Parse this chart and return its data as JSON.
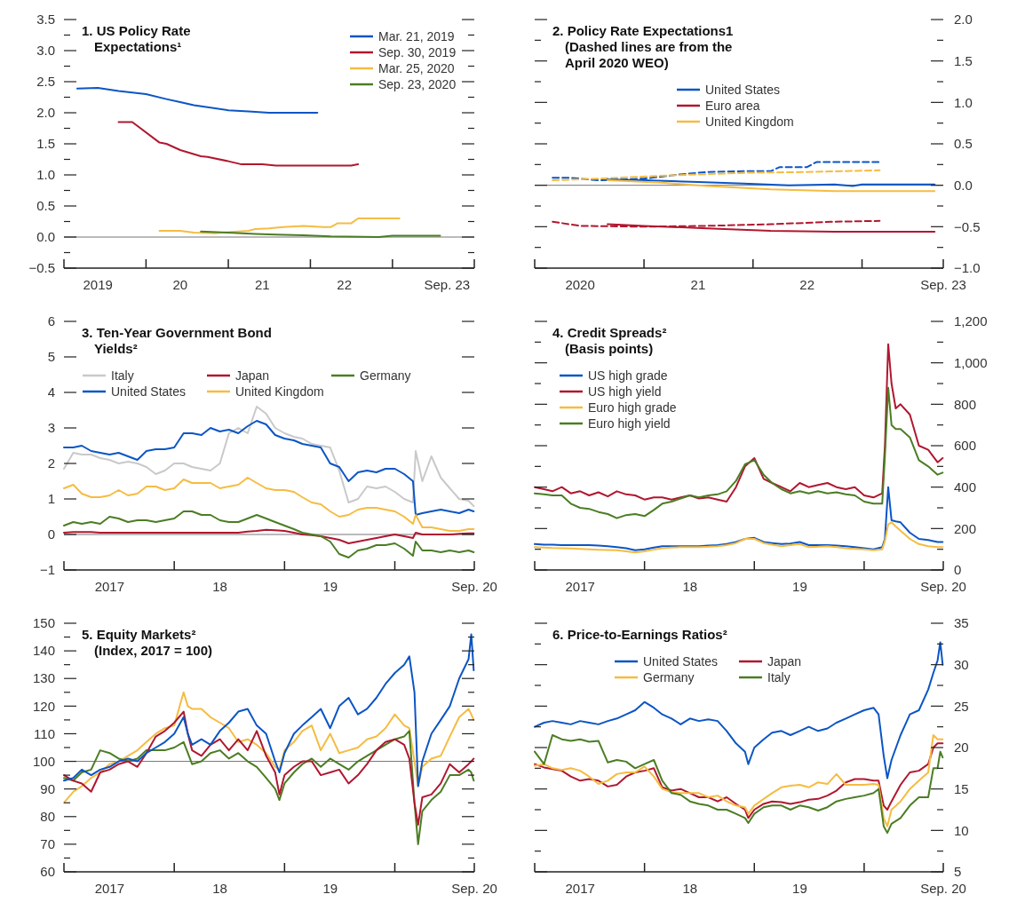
{
  "chart_data": [
    {
      "type": "line",
      "title": "1. US Policy Rate Expectations¹",
      "xlim": [
        "2019-01-01",
        "2023-12-31"
      ],
      "xticks": [
        {
          "value": "2019-06-01",
          "label": "2019"
        },
        {
          "value": "2020-01-01",
          "label": null
        },
        {
          "value": "2020-06-01",
          "label": "20"
        },
        {
          "value": "2021-01-01",
          "label": null
        },
        {
          "value": "2021-06-01",
          "label": "21"
        },
        {
          "value": "2022-01-01",
          "label": null
        },
        {
          "value": "2022-06-01",
          "label": "22"
        },
        {
          "value": "2023-01-01",
          "label": null
        },
        {
          "value": "2023-09-01",
          "label": "Sep. 23"
        }
      ],
      "ylim": [
        -0.5,
        3.5
      ],
      "yticks": [
        3.5,
        {
          "value": 3.25,
          "label": null
        },
        {
          "value": 3,
          "label": "3.0"
        },
        {
          "value": 2.75,
          "label": null
        },
        2.5,
        {
          "value": 2.25,
          "label": null
        },
        {
          "value": 2,
          "label": "2.0"
        },
        {
          "value": 1.75,
          "label": null
        },
        1.5,
        {
          "value": 1.25,
          "label": null
        },
        {
          "value": 1,
          "label": "1.0"
        },
        {
          "value": 0.75,
          "label": null
        },
        0.5,
        {
          "value": 0.25,
          "label": null
        },
        {
          "value": 0,
          "label": "0.0"
        },
        {
          "value": -0.25,
          "label": null
        },
        {
          "value": -0.5,
          "label": "−0.5"
        }
      ],
      "legend": "top right",
      "ref_lines": [
        {
          "axis": "y",
          "value": 0
        }
      ],
      "series": [
        {
          "name": "Mar. 21, 2019",
          "color": "#0b55c4",
          "x": [
            "2019-03",
            "2019-06",
            "2019-09",
            "2020-01",
            "2020-04",
            "2020-06",
            "2020-08",
            "2021-01",
            "2021-04",
            "2021-07",
            "2022-02"
          ],
          "values": [
            2.39,
            2.4,
            2.35,
            2.3,
            2.22,
            2.17,
            2.12,
            2.04,
            2.02,
            2.0,
            2.0
          ]
        },
        {
          "name": "Sep. 30, 2019",
          "color": "#b0172f",
          "x": [
            "2019-09",
            "2019-11",
            "2020-03",
            "2020-04",
            "2020-06",
            "2020-09",
            "2020-10",
            "2021-01",
            "2021-03",
            "2021-06",
            "2021-08",
            "2022-03",
            "2022-07",
            "2022-08"
          ],
          "values": [
            1.85,
            1.85,
            1.52,
            1.5,
            1.4,
            1.3,
            1.29,
            1.22,
            1.17,
            1.17,
            1.15,
            1.15,
            1.15,
            1.17
          ]
        },
        {
          "name": "Mar. 25, 2020",
          "color": "#f5bc42",
          "x": [
            "2020-03",
            "2020-06",
            "2020-08",
            "2020-11",
            "2021-01",
            "2021-04",
            "2021-05",
            "2021-07",
            "2021-09",
            "2021-12",
            "2022-03",
            "2022-04",
            "2022-05",
            "2022-07",
            "2022-08",
            "2023-02"
          ],
          "values": [
            0.1,
            0.1,
            0.07,
            0.06,
            0.08,
            0.1,
            0.13,
            0.14,
            0.16,
            0.18,
            0.16,
            0.16,
            0.22,
            0.22,
            0.3,
            0.3
          ]
        },
        {
          "name": "Sep. 23, 2020",
          "color": "#4b7d24",
          "x": [
            "2020-09",
            "2021-01",
            "2021-05",
            "2021-08",
            "2021-12",
            "2022-04",
            "2022-11",
            "2023-01",
            "2023-08"
          ],
          "values": [
            0.09,
            0.07,
            0.05,
            0.04,
            0.03,
            0.01,
            0.0,
            0.02,
            0.02
          ]
        }
      ]
    },
    {
      "type": "line",
      "title": "2. Policy Rate Expectations1",
      "subtitle": "(Dashed lines are from the April 2020 WEO)",
      "xlim": [
        "2020-01-01",
        "2023-09-30"
      ],
      "xticks": [
        {
          "value": "2020-06-01",
          "label": "2020"
        },
        {
          "value": "2021-01-01",
          "label": null
        },
        {
          "value": "2021-07-01",
          "label": "21"
        },
        {
          "value": "2022-01-01",
          "label": null
        },
        {
          "value": "2022-07-01",
          "label": "22"
        },
        {
          "value": "2023-01-01",
          "label": null
        },
        {
          "value": "2023-09-30",
          "label": "Sep. 23"
        }
      ],
      "ylim": [
        -1,
        2
      ],
      "yticks": [
        {
          "value": 2,
          "label": "2.0"
        },
        {
          "value": 1.75,
          "label": null
        },
        1.5,
        {
          "value": 1.25,
          "label": null
        },
        {
          "value": 1,
          "label": "1.0"
        },
        {
          "value": 0.75,
          "label": null
        },
        0.5,
        {
          "value": 0.25,
          "label": null
        },
        {
          "value": 0,
          "label": "0.0"
        },
        {
          "value": -0.25,
          "label": null
        },
        {
          "value": -0.5,
          "label": "−0.5"
        },
        {
          "value": -0.75,
          "label": null
        },
        {
          "value": -1,
          "label": "−1.0"
        }
      ],
      "legend": "top",
      "ref_lines": [
        {
          "axis": "y",
          "value": 0
        }
      ],
      "series": [
        {
          "color": "#0b55c4",
          "line_style": "dashed",
          "x": [
            "2020-03",
            "2020-05",
            "2020-08",
            "2021-01",
            "2021-05",
            "2021-08",
            "2021-12",
            "2022-03",
            "2022-04",
            "2022-07",
            "2022-08",
            "2023-03"
          ],
          "values": [
            0.09,
            0.09,
            0.06,
            0.08,
            0.13,
            0.16,
            0.17,
            0.17,
            0.22,
            0.22,
            0.28,
            0.28
          ]
        },
        {
          "color": "#f5bc42",
          "line_style": "dashed",
          "x": [
            "2020-03",
            "2020-08",
            "2021-04",
            "2021-12",
            "2022-07",
            "2023-03"
          ],
          "values": [
            0.06,
            0.08,
            0.12,
            0.15,
            0.16,
            0.18
          ]
        },
        {
          "color": "#b0172f",
          "line_style": "dashed",
          "x": [
            "2020-03",
            "2020-06",
            "2021-01",
            "2021-08",
            "2022-03",
            "2022-10",
            "2023-03"
          ],
          "values": [
            -0.44,
            -0.49,
            -0.5,
            -0.49,
            -0.47,
            -0.44,
            -0.43
          ]
        },
        {
          "name": "United States",
          "color": "#0b55c4",
          "line_style": "solid",
          "x": [
            "2020-09",
            "2021-01",
            "2021-07",
            "2021-12",
            "2022-05",
            "2022-10",
            "2022-12",
            "2023-01",
            "2023-09"
          ],
          "values": [
            0.07,
            0.06,
            0.04,
            0.02,
            0.0,
            0.01,
            -0.01,
            0.01,
            0.01
          ]
        },
        {
          "name": "Euro area",
          "color": "#b0172f",
          "line_style": "solid",
          "x": [
            "2020-09",
            "2021-01",
            "2021-08",
            "2022-03",
            "2022-10",
            "2023-09"
          ],
          "values": [
            -0.47,
            -0.49,
            -0.52,
            -0.55,
            -0.56,
            -0.56
          ]
        },
        {
          "name": "United Kingdom",
          "color": "#f5bc42",
          "line_style": "solid",
          "x": [
            "2020-09",
            "2021-03",
            "2021-08",
            "2022-03",
            "2022-10",
            "2023-09"
          ],
          "values": [
            0.06,
            0.03,
            -0.01,
            -0.05,
            -0.07,
            -0.07
          ]
        }
      ]
    },
    {
      "type": "line",
      "title": "3. Ten-Year Government Bond Yields²",
      "xlim": [
        "2017-01-01",
        "2020-09-20"
      ],
      "xticks": [
        {
          "value": "2017-06-01",
          "label": "2017"
        },
        {
          "value": "2018-01-01",
          "label": null
        },
        {
          "value": "2018-06-01",
          "label": "18"
        },
        {
          "value": "2019-01-01",
          "label": null
        },
        {
          "value": "2019-06-01",
          "label": "19"
        },
        {
          "value": "2020-01-01",
          "label": null
        },
        {
          "value": "2020-09-20",
          "label": "Sep. 20"
        }
      ],
      "ylim": [
        -1,
        6
      ],
      "yticks": [
        6,
        5,
        4,
        3,
        2,
        1,
        0,
        {
          "value": -1,
          "label": "−1"
        }
      ],
      "legend": "top",
      "ref_lines": [
        {
          "axis": "y",
          "value": 0
        }
      ],
      "x": [
        "2017-01",
        "2017-02",
        "2017-03",
        "2017-04",
        "2017-05",
        "2017-06",
        "2017-07",
        "2017-08",
        "2017-09",
        "2017-10",
        "2017-11",
        "2017-12",
        "2018-01",
        "2018-02",
        "2018-03",
        "2018-04",
        "2018-05",
        "2018-06",
        "2018-07",
        "2018-08",
        "2018-09",
        "2018-10",
        "2018-11",
        "2018-12",
        "2019-01",
        "2019-02",
        "2019-03",
        "2019-04",
        "2019-05",
        "2019-06",
        "2019-07",
        "2019-08",
        "2019-09",
        "2019-10",
        "2019-11",
        "2019-12",
        "2020-01",
        "2020-02",
        "2020-03",
        "2020-03-10",
        "2020-04",
        "2020-05",
        "2020-06",
        "2020-07",
        "2020-08",
        "2020-09",
        "2020-09-18"
      ],
      "series": [
        {
          "name": "Italy",
          "color": "#c9c9c9",
          "values": [
            1.85,
            2.3,
            2.25,
            2.25,
            2.15,
            2.1,
            2.0,
            2.05,
            2.0,
            1.9,
            1.7,
            1.8,
            2.0,
            2.0,
            1.9,
            1.85,
            1.8,
            2.0,
            2.85,
            3.0,
            2.85,
            3.6,
            3.4,
            3.0,
            2.85,
            2.75,
            2.7,
            2.55,
            2.5,
            2.45,
            1.8,
            0.9,
            1.0,
            1.35,
            1.3,
            1.35,
            1.2,
            1.0,
            0.9,
            2.35,
            1.5,
            2.2,
            1.6,
            1.3,
            1.0,
            0.95,
            0.8
          ]
        },
        {
          "name": "Japan",
          "color": "#b0172f",
          "values": [
            0.05,
            0.07,
            0.07,
            0.07,
            0.05,
            0.05,
            0.05,
            0.05,
            0.05,
            0.05,
            0.05,
            0.05,
            0.05,
            0.05,
            0.05,
            0.05,
            0.05,
            0.05,
            0.05,
            0.05,
            0.08,
            0.1,
            0.13,
            0.12,
            0.1,
            0.05,
            0.0,
            -0.02,
            -0.05,
            -0.1,
            -0.15,
            -0.25,
            -0.2,
            -0.15,
            -0.1,
            -0.05,
            0.0,
            -0.05,
            -0.1,
            0.05,
            0.0,
            0.0,
            0.0,
            0.0,
            0.02,
            0.03,
            0.03
          ]
        },
        {
          "name": "Germany",
          "color": "#4b7d24",
          "values": [
            0.25,
            0.35,
            0.3,
            0.35,
            0.3,
            0.5,
            0.45,
            0.35,
            0.4,
            0.4,
            0.35,
            0.4,
            0.45,
            0.65,
            0.65,
            0.55,
            0.55,
            0.4,
            0.35,
            0.35,
            0.45,
            0.55,
            0.45,
            0.35,
            0.25,
            0.15,
            0.05,
            0.0,
            -0.05,
            -0.2,
            -0.55,
            -0.65,
            -0.45,
            -0.4,
            -0.3,
            -0.3,
            -0.25,
            -0.4,
            -0.6,
            -0.2,
            -0.45,
            -0.45,
            -0.5,
            -0.45,
            -0.5,
            -0.45,
            -0.5
          ]
        },
        {
          "name": "United States",
          "color": "#0b55c4",
          "values": [
            2.45,
            2.45,
            2.5,
            2.35,
            2.3,
            2.25,
            2.3,
            2.2,
            2.1,
            2.35,
            2.4,
            2.4,
            2.45,
            2.85,
            2.85,
            2.8,
            3.0,
            2.9,
            2.95,
            2.85,
            3.05,
            3.2,
            3.1,
            2.8,
            2.7,
            2.65,
            2.55,
            2.5,
            2.45,
            2.0,
            1.9,
            1.5,
            1.75,
            1.8,
            1.75,
            1.85,
            1.85,
            1.7,
            1.5,
            0.55,
            0.6,
            0.65,
            0.7,
            0.65,
            0.6,
            0.7,
            0.65
          ]
        },
        {
          "name": "United Kingdom",
          "color": "#f5bc42",
          "values": [
            1.3,
            1.4,
            1.15,
            1.05,
            1.05,
            1.1,
            1.25,
            1.1,
            1.15,
            1.35,
            1.35,
            1.25,
            1.3,
            1.55,
            1.45,
            1.45,
            1.45,
            1.3,
            1.35,
            1.4,
            1.6,
            1.45,
            1.3,
            1.25,
            1.25,
            1.2,
            1.05,
            0.9,
            0.85,
            0.65,
            0.5,
            0.55,
            0.7,
            0.75,
            0.75,
            0.7,
            0.65,
            0.5,
            0.3,
            0.55,
            0.2,
            0.2,
            0.15,
            0.1,
            0.1,
            0.15,
            0.15
          ]
        }
      ]
    },
    {
      "type": "line",
      "title": "4. Credit Spreads²",
      "subtitle": "(Basis points)",
      "xlim": [
        "2017-01-01",
        "2020-09-20"
      ],
      "xticks": [
        {
          "value": "2017-06-01",
          "label": "2017"
        },
        {
          "value": "2018-01-01",
          "label": null
        },
        {
          "value": "2018-06-01",
          "label": "18"
        },
        {
          "value": "2019-01-01",
          "label": null
        },
        {
          "value": "2019-06-01",
          "label": "19"
        },
        {
          "value": "2020-01-01",
          "label": null
        },
        {
          "value": "2020-09-20",
          "label": "Sep. 20"
        }
      ],
      "ylim": [
        0,
        1200
      ],
      "yticks": [
        {
          "value": 1200,
          "label": "1,200"
        },
        {
          "value": 1100,
          "label": null
        },
        {
          "value": 1000,
          "label": "1,000"
        },
        {
          "value": 900,
          "label": null
        },
        800,
        {
          "value": 700,
          "label": null
        },
        600,
        {
          "value": 500,
          "label": null
        },
        400,
        {
          "value": 300,
          "label": null
        },
        200,
        {
          "value": 100,
          "label": null
        },
        0
      ],
      "legend": "top left",
      "x": [
        "2017-01",
        "2017-02",
        "2017-03",
        "2017-04",
        "2017-05",
        "2017-06",
        "2017-07",
        "2017-08",
        "2017-09",
        "2017-10",
        "2017-11",
        "2017-12",
        "2018-01",
        "2018-02",
        "2018-03",
        "2018-04",
        "2018-05",
        "2018-06",
        "2018-07",
        "2018-08",
        "2018-09",
        "2018-10",
        "2018-11",
        "2018-12",
        "2019-01",
        "2019-02",
        "2019-03",
        "2019-04",
        "2019-05",
        "2019-06",
        "2019-07",
        "2019-08",
        "2019-09",
        "2019-10",
        "2019-11",
        "2019-12",
        "2020-01",
        "2020-02",
        "2020-03",
        "2020-03-10",
        "2020-03-21",
        "2020-04",
        "2020-04-15",
        "2020-05",
        "2020-06",
        "2020-07",
        "2020-08",
        "2020-09",
        "2020-09-18"
      ],
      "series": [
        {
          "name": "US high grade",
          "color": "#0b55c4",
          "values": [
            125,
            122,
            122,
            120,
            120,
            120,
            120,
            118,
            115,
            110,
            105,
            95,
            100,
            108,
            115,
            115,
            115,
            115,
            115,
            118,
            120,
            125,
            135,
            150,
            155,
            135,
            130,
            125,
            128,
            135,
            120,
            120,
            120,
            118,
            115,
            110,
            105,
            100,
            110,
            150,
            400,
            240,
            235,
            230,
            180,
            150,
            145,
            135,
            135
          ]
        },
        {
          "name": "US high yield",
          "color": "#b0172f",
          "values": [
            400,
            390,
            380,
            400,
            370,
            380,
            360,
            375,
            355,
            380,
            365,
            360,
            340,
            350,
            350,
            340,
            350,
            360,
            345,
            350,
            340,
            330,
            400,
            500,
            540,
            440,
            420,
            400,
            380,
            420,
            400,
            410,
            420,
            400,
            390,
            400,
            360,
            350,
            370,
            600,
            1090,
            900,
            780,
            800,
            750,
            600,
            580,
            520,
            540
          ]
        },
        {
          "name": "Euro high grade",
          "color": "#f5bc42",
          "values": [
            110,
            108,
            106,
            105,
            104,
            102,
            100,
            98,
            96,
            95,
            90,
            85,
            90,
            98,
            105,
            108,
            110,
            110,
            110,
            112,
            115,
            120,
            130,
            150,
            150,
            130,
            122,
            115,
            120,
            125,
            110,
            112,
            115,
            110,
            105,
            102,
            100,
            95,
            100,
            140,
            220,
            230,
            210,
            190,
            150,
            125,
            115,
            110,
            110
          ]
        },
        {
          "name": "Euro high yield",
          "color": "#4b7d24",
          "values": [
            370,
            365,
            360,
            360,
            320,
            300,
            295,
            280,
            270,
            250,
            265,
            270,
            260,
            290,
            320,
            330,
            345,
            360,
            350,
            360,
            365,
            380,
            430,
            510,
            530,
            460,
            420,
            390,
            370,
            380,
            370,
            380,
            370,
            375,
            365,
            360,
            330,
            320,
            320,
            550,
            880,
            700,
            680,
            680,
            640,
            530,
            500,
            460,
            470
          ]
        }
      ]
    },
    {
      "type": "line",
      "title": "5. Equity Markets²",
      "subtitle": "(Index, 2017 = 100)",
      "xlim": [
        "2017-01-01",
        "2020-09-20"
      ],
      "xticks": [
        {
          "value": "2017-06-01",
          "label": "2017"
        },
        {
          "value": "2018-01-01",
          "label": null
        },
        {
          "value": "2018-06-01",
          "label": "18"
        },
        {
          "value": "2019-01-01",
          "label": null
        },
        {
          "value": "2019-06-01",
          "label": "19"
        },
        {
          "value": "2020-01-01",
          "label": null
        },
        {
          "value": "2020-09-20",
          "label": "Sep. 20"
        }
      ],
      "ylim": [
        60,
        150
      ],
      "yticks": [
        150,
        {
          "value": 145,
          "label": null
        },
        140,
        {
          "value": 135,
          "label": null
        },
        130,
        {
          "value": 125,
          "label": null
        },
        120,
        {
          "value": 115,
          "label": null
        },
        110,
        {
          "value": 105,
          "label": null
        },
        100,
        {
          "value": 95,
          "label": null
        },
        90,
        {
          "value": 85,
          "label": null
        },
        80,
        {
          "value": 75,
          "label": null
        },
        70,
        {
          "value": 65,
          "label": null
        },
        60
      ],
      "ref_lines": [
        {
          "axis": "y",
          "value": 100
        }
      ],
      "x": [
        "2017-01",
        "2017-02",
        "2017-03",
        "2017-04",
        "2017-05",
        "2017-06",
        "2017-07",
        "2017-08",
        "2017-09",
        "2017-10",
        "2017-11",
        "2017-12",
        "2018-01",
        "2018-02",
        "2018-02-15",
        "2018-03",
        "2018-04",
        "2018-05",
        "2018-06",
        "2018-07",
        "2018-08",
        "2018-09",
        "2018-10",
        "2018-11",
        "2018-12",
        "2018-12-15",
        "2019-01",
        "2019-02",
        "2019-03",
        "2019-04",
        "2019-05",
        "2019-06",
        "2019-07",
        "2019-08",
        "2019-09",
        "2019-10",
        "2019-11",
        "2019-12",
        "2020-01",
        "2020-02",
        "2020-02-18",
        "2020-03-06",
        "2020-03-18",
        "2020-04",
        "2020-05",
        "2020-06",
        "2020-07",
        "2020-08",
        "2020-09",
        "2020-09-10",
        "2020-09-18"
      ],
      "series": [
        {
          "color": "#f5bc42",
          "values": [
            85,
            89,
            91,
            94,
            96,
            99,
            100,
            102,
            104,
            107,
            110,
            112,
            113,
            125,
            120,
            119,
            119,
            116,
            114,
            112,
            107,
            108,
            106,
            103,
            98,
            97,
            104,
            107,
            111,
            113,
            104,
            110,
            103,
            104,
            105,
            108,
            109,
            112,
            117,
            113,
            112,
            100,
            91,
            98,
            101,
            102,
            109,
            116,
            119,
            117,
            115
          ]
        },
        {
          "color": "#4b7d24",
          "values": [
            94,
            93,
            96,
            97,
            104,
            103,
            101,
            100,
            101,
            104,
            104,
            104,
            105,
            107,
            103,
            99,
            100,
            103,
            104,
            101,
            103,
            100,
            98,
            94,
            90,
            86,
            92,
            96,
            99,
            101,
            98,
            101,
            99,
            97,
            100,
            102,
            104,
            106,
            108,
            109,
            111,
            85,
            70,
            82,
            86,
            89,
            95,
            95,
            97,
            96,
            93
          ]
        },
        {
          "color": "#b0172f",
          "values": [
            95,
            93,
            92,
            89,
            96,
            97,
            99,
            100,
            98,
            103,
            109,
            111,
            114,
            118,
            110,
            104,
            102,
            106,
            108,
            104,
            108,
            104,
            111,
            102,
            96,
            88,
            95,
            98,
            100,
            100,
            95,
            96,
            97,
            92,
            95,
            99,
            104,
            107,
            108,
            106,
            101,
            85,
            77,
            87,
            88,
            92,
            99,
            96,
            99,
            100,
            101
          ]
        },
        {
          "color": "#0b55c4",
          "values": [
            93,
            94,
            97,
            95,
            97,
            98,
            100,
            101,
            100,
            103,
            105,
            107,
            110,
            116,
            110,
            106,
            108,
            106,
            111,
            114,
            118,
            119,
            113,
            110,
            100,
            96,
            103,
            110,
            113,
            116,
            119,
            112,
            120,
            123,
            117,
            119,
            123,
            128,
            132,
            135,
            138,
            125,
            91,
            100,
            110,
            115,
            120,
            130,
            137,
            146,
            133
          ]
        }
      ]
    },
    {
      "type": "line",
      "title": "6. Price-to-Earnings Ratios²",
      "xlim": [
        "2017-01-01",
        "2020-09-20"
      ],
      "xticks": [
        {
          "value": "2017-06-01",
          "label": "2017"
        },
        {
          "value": "2018-01-01",
          "label": null
        },
        {
          "value": "2018-06-01",
          "label": "18"
        },
        {
          "value": "2019-01-01",
          "label": null
        },
        {
          "value": "2019-06-01",
          "label": "19"
        },
        {
          "value": "2020-01-01",
          "label": null
        },
        {
          "value": "2020-09-20",
          "label": "Sep. 20"
        }
      ],
      "ylim": [
        5,
        35
      ],
      "yticks": [
        35,
        {
          "value": 32.5,
          "label": null
        },
        30,
        {
          "value": 27.5,
          "label": null
        },
        25,
        {
          "value": 22.5,
          "label": null
        },
        20,
        {
          "value": 17.5,
          "label": null
        },
        15,
        {
          "value": 12.5,
          "label": null
        },
        10,
        {
          "value": 7.5,
          "label": null
        },
        5
      ],
      "legend": "top",
      "x": [
        "2017-01",
        "2017-02",
        "2017-03",
        "2017-04",
        "2017-05",
        "2017-06",
        "2017-07",
        "2017-08",
        "2017-09",
        "2017-10",
        "2017-11",
        "2017-12",
        "2018-01",
        "2018-02",
        "2018-03",
        "2018-04",
        "2018-05",
        "2018-06",
        "2018-07",
        "2018-08",
        "2018-09",
        "2018-10",
        "2018-11",
        "2018-12",
        "2018-12-12",
        "2019-01",
        "2019-02",
        "2019-03",
        "2019-04",
        "2019-05",
        "2019-06",
        "2019-07",
        "2019-08",
        "2019-09",
        "2019-10",
        "2019-11",
        "2019-12",
        "2020-01",
        "2020-02",
        "2020-02-18",
        "2020-03-06",
        "2020-03-18",
        "2020-04",
        "2020-05",
        "2020-06",
        "2020-07",
        "2020-08",
        "2020-08-18",
        "2020-09",
        "2020-09-10",
        "2020-09-18"
      ],
      "series": [
        {
          "name": "United States",
          "color": "#0b55c4",
          "values": [
            22.5,
            23,
            23.2,
            23,
            22.8,
            23.2,
            23,
            22.8,
            23.2,
            23.5,
            24,
            24.5,
            25.5,
            24.8,
            24,
            23.5,
            22.8,
            23.5,
            23.2,
            23.4,
            23.2,
            22,
            20.5,
            19.5,
            18,
            20,
            21,
            21.8,
            22,
            21.5,
            22,
            22.5,
            22,
            22.3,
            23,
            23.5,
            24,
            24.5,
            24.8,
            24,
            19,
            16.3,
            18.5,
            21.5,
            24,
            24.5,
            27,
            29,
            30.5,
            32.7,
            30
          ]
        },
        {
          "name": "Japan",
          "color": "#b0172f",
          "values": [
            18,
            17.6,
            17.4,
            17.2,
            16.5,
            16,
            16.2,
            16,
            15.3,
            15.5,
            16.5,
            17,
            17.2,
            17.5,
            15.2,
            14.8,
            15,
            14.5,
            14,
            14,
            13.5,
            14,
            13.2,
            12.5,
            11.5,
            12.5,
            13.2,
            13.5,
            13.4,
            13.2,
            13.4,
            13.7,
            13.8,
            14.2,
            14.8,
            15.8,
            16.2,
            16.2,
            16,
            16,
            13,
            12.5,
            13.5,
            15.5,
            17,
            17.2,
            18,
            20,
            20.5,
            20.5,
            20.5
          ]
        },
        {
          "name": "Germany",
          "color": "#f5bc42",
          "values": [
            17.8,
            18,
            17.5,
            17.3,
            17.5,
            17.2,
            16.5,
            15.6,
            16,
            16.8,
            17,
            17,
            17.7,
            16.5,
            15,
            14.6,
            14.5,
            14.5,
            14.5,
            14,
            14.2,
            13.5,
            13,
            12.8,
            12,
            13,
            13.8,
            14.5,
            15.2,
            15.4,
            15.5,
            15.2,
            15.8,
            15.6,
            16.8,
            15.5,
            15.5,
            15.5,
            15.6,
            15.5,
            11.5,
            10.5,
            12.5,
            13.5,
            15,
            16,
            17,
            21.5,
            21,
            21,
            21
          ]
        },
        {
          "name": "Italy",
          "color": "#4b7d24",
          "values": [
            19.5,
            18,
            21.5,
            21,
            20.8,
            21,
            20.7,
            20.8,
            18.2,
            18.5,
            18.3,
            17.5,
            18,
            18.5,
            16,
            14.5,
            14.3,
            13.5,
            13.2,
            13,
            12.5,
            12.5,
            12,
            11.5,
            10.9,
            12,
            12.8,
            13,
            13,
            12.5,
            13,
            12.8,
            12.4,
            12.8,
            13.5,
            13.8,
            14,
            14.2,
            14.5,
            15,
            10.5,
            9.7,
            10.8,
            11.5,
            13,
            14,
            14,
            17.5,
            17.5,
            19.5,
            18.8
          ]
        }
      ]
    }
  ]
}
